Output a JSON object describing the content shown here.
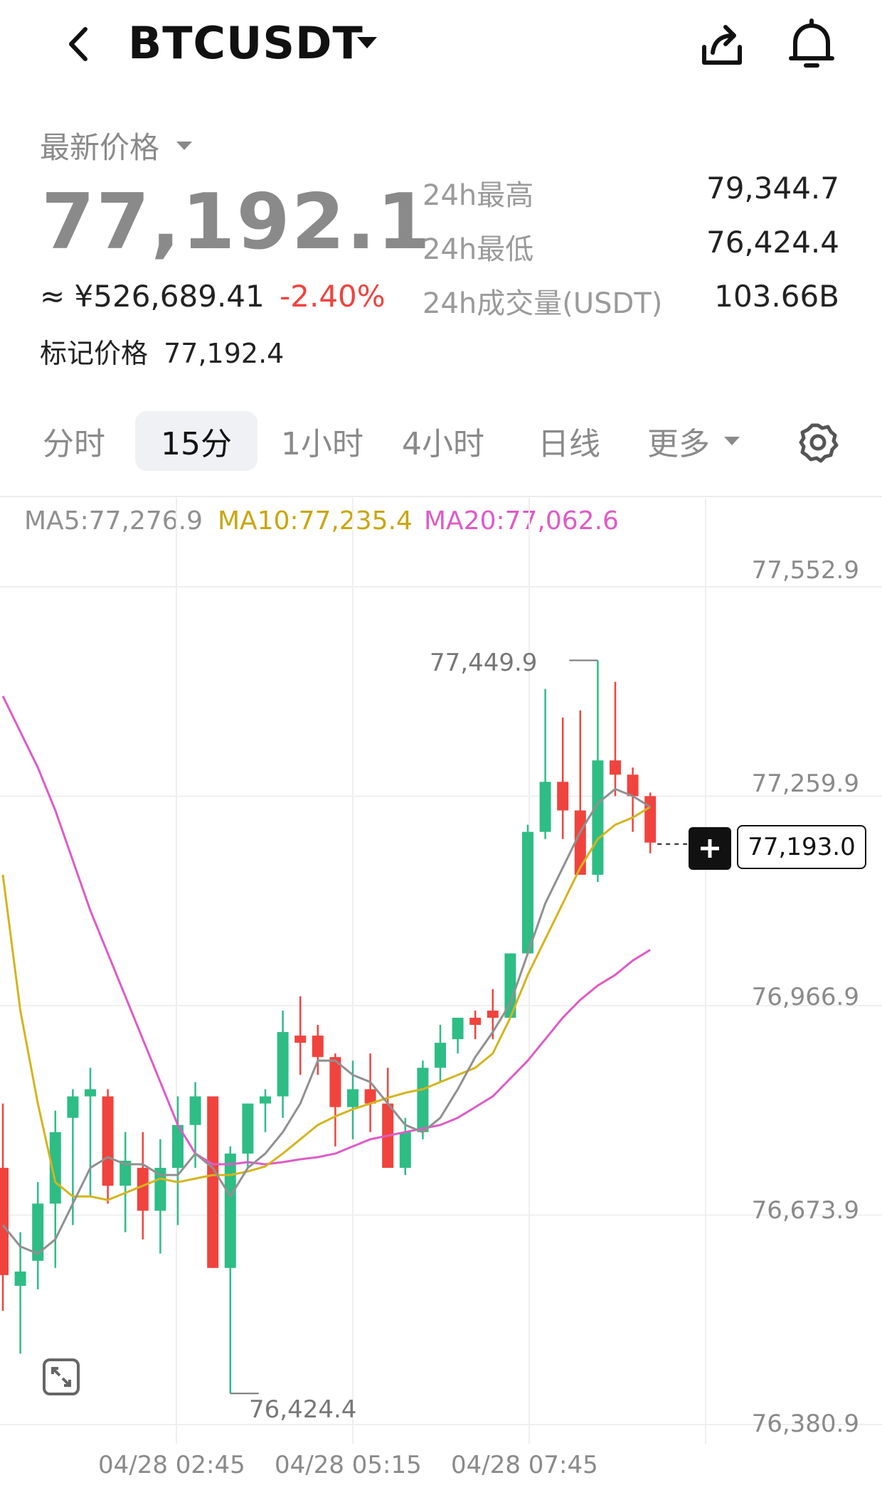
{
  "header": {
    "title": "BTCUSDT",
    "icons": [
      "back-arrow-icon",
      "dropdown-caret-icon",
      "share-icon",
      "bell-icon"
    ]
  },
  "price": {
    "label": "最新价格",
    "last": "77,192.1",
    "cny": "≈ ¥526,689.41",
    "change": "-2.40%",
    "mark_label": "标记价格",
    "mark_value": "77,192.4"
  },
  "stats": [
    {
      "label": "24h最高",
      "value": "79,344.7"
    },
    {
      "label": "24h最低",
      "value": "76,424.4"
    },
    {
      "label": "24h成交量(USDT)",
      "value": "103.66B"
    }
  ],
  "tabs": [
    {
      "label": "分时",
      "active": false
    },
    {
      "label": "15分",
      "active": true
    },
    {
      "label": "1小时",
      "active": false
    },
    {
      "label": "4小时",
      "active": false
    },
    {
      "label": "日线",
      "active": false
    },
    {
      "label": "更多",
      "active": false
    }
  ],
  "colors": {
    "up": "#2dbd85",
    "down": "#f0433e",
    "ma5": "#909090",
    "ma10": "#d4b41c",
    "ma20": "#de5bc6"
  },
  "chart_data": {
    "type": "candlestick",
    "ma_labels": {
      "ma5": "MA5:77,276.9",
      "ma10": "MA10:77,235.4",
      "ma20": "MA20:77,062.6"
    },
    "y_ticks": [
      "77,552.9",
      "77,259.9",
      "76,966.9",
      "76,673.9",
      "76,380.9"
    ],
    "y_tick_values": [
      77552.9,
      77259.9,
      76966.9,
      76673.9,
      76380.9
    ],
    "ylim": [
      76380.9,
      77552.9
    ],
    "x_ticks": [
      "04/28 02:45",
      "04/28 05:15",
      "04/28 07:45"
    ],
    "annotations": {
      "high": "77,449.9",
      "low": "76,424.4",
      "current": "77,193.0"
    },
    "current_value": 77193.0,
    "candles": [
      {
        "o": 76740,
        "h": 76830,
        "l": 76540,
        "c": 76590
      },
      {
        "o": 76575,
        "h": 76650,
        "l": 76480,
        "c": 76595
      },
      {
        "o": 76610,
        "h": 76720,
        "l": 76570,
        "c": 76690
      },
      {
        "o": 76690,
        "h": 76820,
        "l": 76600,
        "c": 76790
      },
      {
        "o": 76810,
        "h": 76850,
        "l": 76660,
        "c": 76840
      },
      {
        "o": 76840,
        "h": 76880,
        "l": 76700,
        "c": 76850
      },
      {
        "o": 76840,
        "h": 76850,
        "l": 76690,
        "c": 76715
      },
      {
        "o": 76715,
        "h": 76790,
        "l": 76650,
        "c": 76750
      },
      {
        "o": 76740,
        "h": 76790,
        "l": 76640,
        "c": 76680
      },
      {
        "o": 76680,
        "h": 76780,
        "l": 76620,
        "c": 76740
      },
      {
        "o": 76740,
        "h": 76840,
        "l": 76660,
        "c": 76800
      },
      {
        "o": 76800,
        "h": 76860,
        "l": 76740,
        "c": 76840
      },
      {
        "o": 76840,
        "h": 76840,
        "l": 76600,
        "c": 76600
      },
      {
        "o": 76600,
        "h": 76770,
        "l": 76424.4,
        "c": 76760
      },
      {
        "o": 76760,
        "h": 76830,
        "l": 76740,
        "c": 76830
      },
      {
        "o": 76830,
        "h": 76850,
        "l": 76790,
        "c": 76840
      },
      {
        "o": 76840,
        "h": 76960,
        "l": 76810,
        "c": 76930
      },
      {
        "o": 76925,
        "h": 76980,
        "l": 76870,
        "c": 76915
      },
      {
        "o": 76925,
        "h": 76940,
        "l": 76870,
        "c": 76895
      },
      {
        "o": 76895,
        "h": 76900,
        "l": 76770,
        "c": 76825
      },
      {
        "o": 76825,
        "h": 76890,
        "l": 76780,
        "c": 76850
      },
      {
        "o": 76850,
        "h": 76900,
        "l": 76790,
        "c": 76830
      },
      {
        "o": 76830,
        "h": 76880,
        "l": 76740,
        "c": 76740
      },
      {
        "o": 76740,
        "h": 76810,
        "l": 76730,
        "c": 76790
      },
      {
        "o": 76790,
        "h": 76890,
        "l": 76780,
        "c": 76880
      },
      {
        "o": 76880,
        "h": 76940,
        "l": 76860,
        "c": 76915
      },
      {
        "o": 76920,
        "h": 76950,
        "l": 76900,
        "c": 76950
      },
      {
        "o": 76950,
        "h": 76960,
        "l": 76920,
        "c": 76940
      },
      {
        "o": 76960,
        "h": 76990,
        "l": 76920,
        "c": 76950
      },
      {
        "o": 76950,
        "h": 77040,
        "l": 76950,
        "c": 77040
      },
      {
        "o": 77040,
        "h": 77220,
        "l": 77040,
        "c": 77210
      },
      {
        "o": 77210,
        "h": 77410,
        "l": 77200,
        "c": 77280
      },
      {
        "o": 77280,
        "h": 77370,
        "l": 77200,
        "c": 77240
      },
      {
        "o": 77240,
        "h": 77380,
        "l": 77150,
        "c": 77150
      },
      {
        "o": 77150,
        "h": 77449.9,
        "l": 77140,
        "c": 77310
      },
      {
        "o": 77310,
        "h": 77420,
        "l": 77260,
        "c": 77290
      },
      {
        "o": 77290,
        "h": 77300,
        "l": 77210,
        "c": 77260
      },
      {
        "o": 77260,
        "h": 77265,
        "l": 77180,
        "c": 77195
      }
    ],
    "ma5": [
      76660,
      76630,
      76620,
      76640,
      76690,
      76740,
      76755,
      76745,
      76745,
      76730,
      76730,
      76760,
      76740,
      76700,
      76740,
      76760,
      76790,
      76830,
      76890,
      76890,
      76870,
      76860,
      76830,
      76800,
      76790,
      76810,
      76850,
      76895,
      76930,
      76970,
      77040,
      77110,
      77160,
      77210,
      77250,
      77270,
      77260,
      77245
    ],
    "ma10": [
      77150,
      76960,
      76830,
      76720,
      76700,
      76700,
      76695,
      76705,
      76715,
      76725,
      76720,
      76725,
      76730,
      76730,
      76735,
      76742,
      76760,
      76780,
      76800,
      76812,
      76822,
      76830,
      76838,
      76845,
      76850,
      76860,
      76870,
      76880,
      76900,
      76950,
      77010,
      77060,
      77110,
      77160,
      77200,
      77220,
      77230,
      77245
    ],
    "ma20": [
      77400,
      77350,
      77300,
      77240,
      77170,
      77100,
      77040,
      76980,
      76920,
      76860,
      76800,
      76760,
      76745,
      76745,
      76748,
      76745,
      76748,
      76752,
      76755,
      76760,
      76770,
      76780,
      76785,
      76790,
      76795,
      76800,
      76810,
      76825,
      76840,
      76865,
      76890,
      76920,
      76950,
      76975,
      76995,
      77010,
      77030,
      77045
    ]
  }
}
